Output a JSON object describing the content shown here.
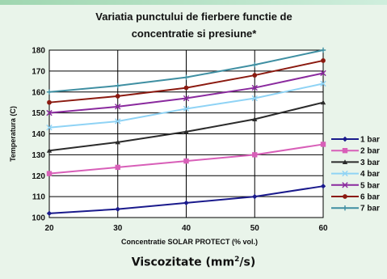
{
  "chart_data": {
    "type": "line",
    "title_line1": "Variatia punctului de fierbere functie de",
    "title_line2": "concentratie si presiune*",
    "xlabel": "Concentratie SOLAR PROTECT (% vol.)",
    "ylabel": "Temperatura (C)",
    "x": [
      20,
      30,
      40,
      50,
      60
    ],
    "xlim": [
      20,
      60
    ],
    "ylim": [
      100,
      180
    ],
    "yticks": [
      100,
      110,
      120,
      130,
      140,
      150,
      160,
      170,
      180
    ],
    "grid": true,
    "legend_position": "right",
    "series": [
      {
        "name": "1 bar",
        "color": "#1a1a8c",
        "marker": "diamond",
        "values": [
          102,
          104,
          107,
          110,
          115
        ]
      },
      {
        "name": "2 bar",
        "color": "#d85fb8",
        "marker": "square",
        "values": [
          121,
          124,
          127,
          130,
          135
        ]
      },
      {
        "name": "3 bar",
        "color": "#2b2b2b",
        "marker": "triangle",
        "values": [
          132,
          136,
          141,
          147,
          155
        ]
      },
      {
        "name": "4 bar",
        "color": "#8fd3f5",
        "marker": "x",
        "values": [
          143,
          146,
          152,
          157,
          164
        ]
      },
      {
        "name": "5 bar",
        "color": "#8a2a9e",
        "marker": "x",
        "values": [
          150,
          153,
          157,
          162,
          169
        ]
      },
      {
        "name": "6 bar",
        "color": "#8b1a10",
        "marker": "circle",
        "values": [
          155,
          158,
          162,
          168,
          175
        ]
      },
      {
        "name": "7 bar",
        "color": "#3f8fa2",
        "marker": "plus",
        "values": [
          160,
          163,
          167,
          173,
          180
        ]
      }
    ]
  },
  "footer": {
    "label_main": "Viscozitate (mm",
    "label_sup": "2",
    "label_end": "/s)"
  }
}
